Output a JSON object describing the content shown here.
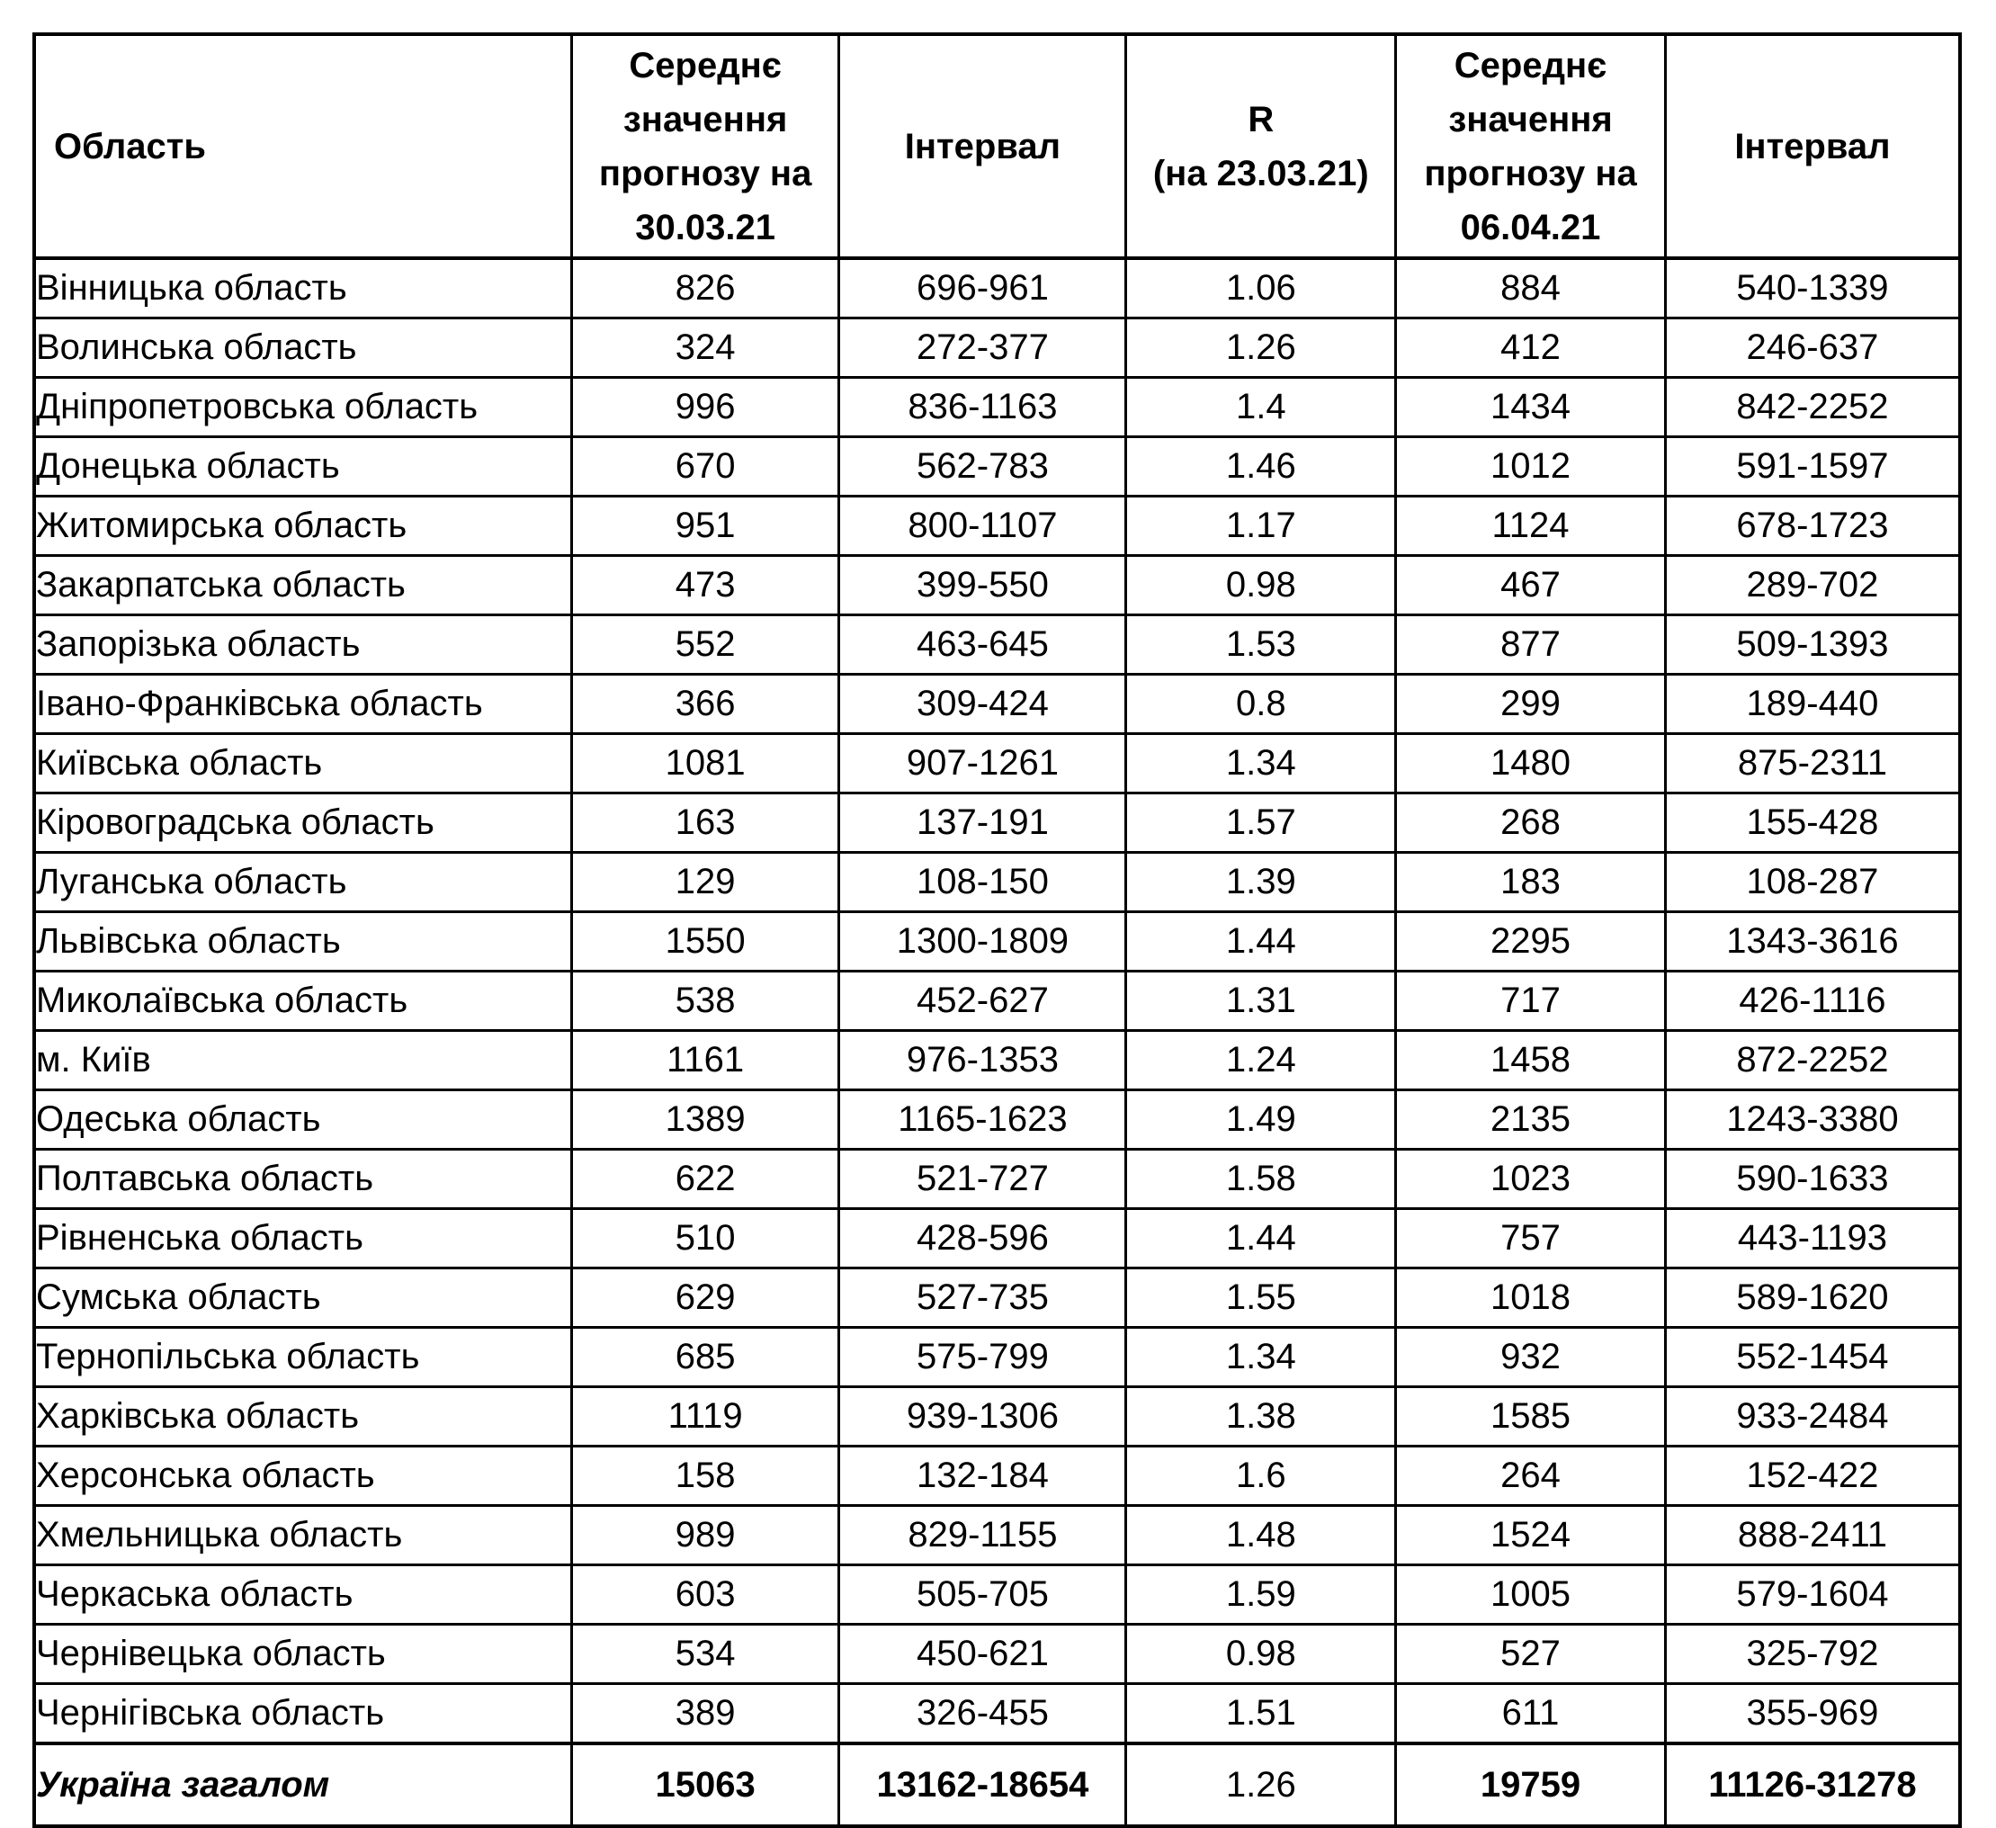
{
  "table": {
    "columns": [
      {
        "label": "Область"
      },
      {
        "label": "Середнє\nзначення\nпрогнозу на\n30.03.21"
      },
      {
        "label": "Інтервал"
      },
      {
        "label": "R\n(на 23.03.21)"
      },
      {
        "label": "Середнє\nзначення\nпрогнозу на\n06.04.21"
      },
      {
        "label": "Інтервал"
      }
    ],
    "rows": [
      {
        "region": "Вінницька область",
        "mean_3003": "826",
        "interval_3003": "696-961",
        "r": "1.06",
        "mean_0604": "884",
        "interval_0604": "540-1339"
      },
      {
        "region": "Волинська область",
        "mean_3003": "324",
        "interval_3003": "272-377",
        "r": "1.26",
        "mean_0604": "412",
        "interval_0604": "246-637"
      },
      {
        "region": "Дніпропетровська область",
        "mean_3003": "996",
        "interval_3003": "836-1163",
        "r": "1.4",
        "mean_0604": "1434",
        "interval_0604": "842-2252"
      },
      {
        "region": "Донецька область",
        "mean_3003": "670",
        "interval_3003": "562-783",
        "r": "1.46",
        "mean_0604": "1012",
        "interval_0604": "591-1597"
      },
      {
        "region": "Житомирська область",
        "mean_3003": "951",
        "interval_3003": "800-1107",
        "r": "1.17",
        "mean_0604": "1124",
        "interval_0604": "678-1723"
      },
      {
        "region": "Закарпатська область",
        "mean_3003": "473",
        "interval_3003": "399-550",
        "r": "0.98",
        "mean_0604": "467",
        "interval_0604": "289-702"
      },
      {
        "region": "Запорізька область",
        "mean_3003": "552",
        "interval_3003": "463-645",
        "r": "1.53",
        "mean_0604": "877",
        "interval_0604": "509-1393"
      },
      {
        "region": "Івано-Франківська область",
        "mean_3003": "366",
        "interval_3003": "309-424",
        "r": "0.8",
        "mean_0604": "299",
        "interval_0604": "189-440"
      },
      {
        "region": "Київська область",
        "mean_3003": "1081",
        "interval_3003": "907-1261",
        "r": "1.34",
        "mean_0604": "1480",
        "interval_0604": "875-2311"
      },
      {
        "region": "Кіровоградська область",
        "mean_3003": "163",
        "interval_3003": "137-191",
        "r": "1.57",
        "mean_0604": "268",
        "interval_0604": "155-428"
      },
      {
        "region": "Луганська область",
        "mean_3003": "129",
        "interval_3003": "108-150",
        "r": "1.39",
        "mean_0604": "183",
        "interval_0604": "108-287"
      },
      {
        "region": "Львівська область",
        "mean_3003": "1550",
        "interval_3003": "1300-1809",
        "r": "1.44",
        "mean_0604": "2295",
        "interval_0604": "1343-3616"
      },
      {
        "region": "Миколаївська область",
        "mean_3003": "538",
        "interval_3003": "452-627",
        "r": "1.31",
        "mean_0604": "717",
        "interval_0604": "426-1116"
      },
      {
        "region": "м. Київ",
        "mean_3003": "1161",
        "interval_3003": "976-1353",
        "r": "1.24",
        "mean_0604": "1458",
        "interval_0604": "872-2252"
      },
      {
        "region": "Одеська область",
        "mean_3003": "1389",
        "interval_3003": "1165-1623",
        "r": "1.49",
        "mean_0604": "2135",
        "interval_0604": "1243-3380"
      },
      {
        "region": "Полтавська область",
        "mean_3003": "622",
        "interval_3003": "521-727",
        "r": "1.58",
        "mean_0604": "1023",
        "interval_0604": "590-1633"
      },
      {
        "region": "Рівненська область",
        "mean_3003": "510",
        "interval_3003": "428-596",
        "r": "1.44",
        "mean_0604": "757",
        "interval_0604": "443-1193"
      },
      {
        "region": "Сумська область",
        "mean_3003": "629",
        "interval_3003": "527-735",
        "r": "1.55",
        "mean_0604": "1018",
        "interval_0604": "589-1620"
      },
      {
        "region": "Тернопільська область",
        "mean_3003": "685",
        "interval_3003": "575-799",
        "r": "1.34",
        "mean_0604": "932",
        "interval_0604": "552-1454"
      },
      {
        "region": "Харківська область",
        "mean_3003": "1119",
        "interval_3003": "939-1306",
        "r": "1.38",
        "mean_0604": "1585",
        "interval_0604": "933-2484"
      },
      {
        "region": "Херсонська область",
        "mean_3003": "158",
        "interval_3003": "132-184",
        "r": "1.6",
        "mean_0604": "264",
        "interval_0604": "152-422"
      },
      {
        "region": "Хмельницька область",
        "mean_3003": "989",
        "interval_3003": "829-1155",
        "r": "1.48",
        "mean_0604": "1524",
        "interval_0604": "888-2411"
      },
      {
        "region": "Черкаська область",
        "mean_3003": "603",
        "interval_3003": "505-705",
        "r": "1.59",
        "mean_0604": "1005",
        "interval_0604": "579-1604"
      },
      {
        "region": "Чернівецька область",
        "mean_3003": "534",
        "interval_3003": "450-621",
        "r": "0.98",
        "mean_0604": "527",
        "interval_0604": "325-792"
      },
      {
        "region": "Чернігівська область",
        "mean_3003": "389",
        "interval_3003": "326-455",
        "r": "1.51",
        "mean_0604": "611",
        "interval_0604": "355-969"
      }
    ],
    "total": {
      "region": "Україна загалом",
      "mean_3003": "15063",
      "interval_3003": "13162-18654",
      "r": "1.26",
      "mean_0604": "19759",
      "interval_0604": "11126-31278"
    }
  }
}
